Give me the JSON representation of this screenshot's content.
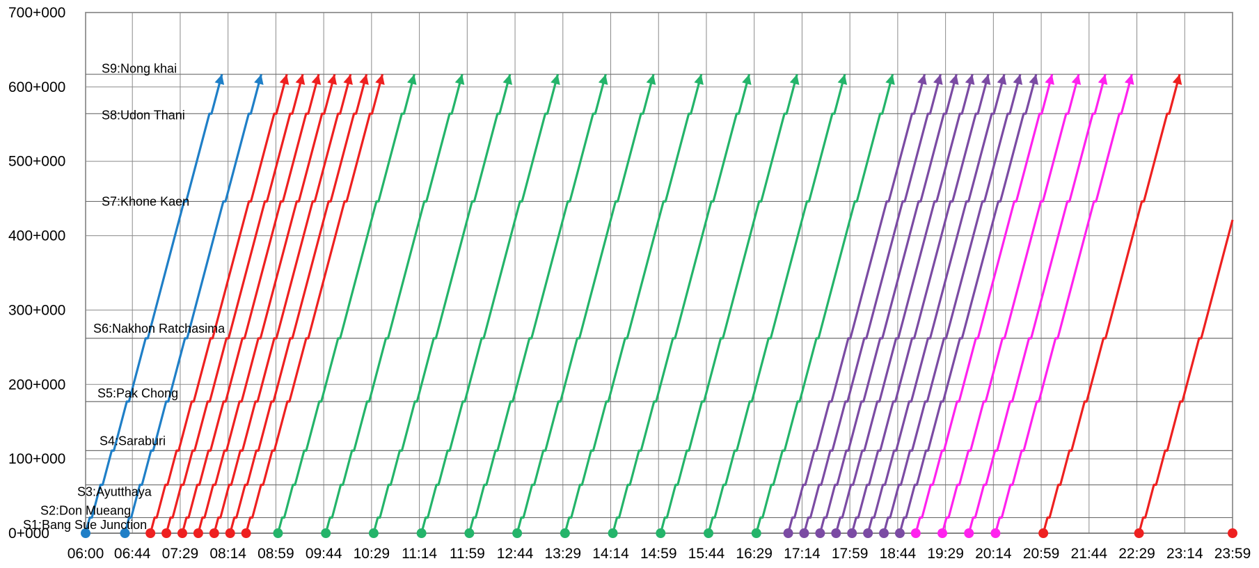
{
  "chart_data": {
    "type": "line",
    "title": "",
    "xlabel": "",
    "ylabel": "",
    "x_unit": "time of day",
    "y_unit": "chainage (km+m)",
    "xlim": [
      "06:00",
      "23:59"
    ],
    "ylim": [
      0,
      700
    ],
    "x_ticks": [
      "06:00",
      "06:44",
      "07:29",
      "08:14",
      "08:59",
      "09:44",
      "10:29",
      "11:14",
      "11:59",
      "12:44",
      "13:29",
      "14:14",
      "14:59",
      "15:44",
      "16:29",
      "17:14",
      "17:59",
      "18:44",
      "19:29",
      "20:14",
      "20:59",
      "21:44",
      "22:29",
      "23:14",
      "23:59"
    ],
    "y_ticks": [
      {
        "value": 0,
        "label": "0+000"
      },
      {
        "value": 100,
        "label": "100+000"
      },
      {
        "value": 200,
        "label": "200+000"
      },
      {
        "value": 300,
        "label": "300+000"
      },
      {
        "value": 400,
        "label": "400+000"
      },
      {
        "value": 500,
        "label": "500+000"
      },
      {
        "value": 600,
        "label": "600+000"
      },
      {
        "value": 700,
        "label": "700+000"
      }
    ],
    "grid": true,
    "stations": [
      {
        "name": "S1:Bang Sue Junction",
        "km": 0
      },
      {
        "name": "S2:Don Mueang",
        "km": 21
      },
      {
        "name": "S3:Ayutthaya",
        "km": 65
      },
      {
        "name": "S4:Saraburi",
        "km": 111
      },
      {
        "name": "S5:Pak Chong",
        "km": 177
      },
      {
        "name": "S6:Nakhon Ratchasima",
        "km": 262
      },
      {
        "name": "S7:Khone Kaen",
        "km": 446
      },
      {
        "name": "S8:Udon Thani",
        "km": 564
      },
      {
        "name": "S9:Nong khai",
        "km": 617
      }
    ],
    "series": [
      {
        "color": "#1f7fc7",
        "departures": [
          "06:00",
          "06:37"
        ]
      },
      {
        "color": "#ee2020",
        "departures": [
          "07:01",
          "07:16",
          "07:31",
          "07:46",
          "08:01",
          "08:16",
          "08:31"
        ]
      },
      {
        "color": "#24b46a",
        "departures": [
          "09:01",
          "09:46",
          "10:31",
          "11:16",
          "12:01",
          "12:46",
          "13:31",
          "14:16",
          "15:01",
          "15:46",
          "16:31"
        ]
      },
      {
        "color": "#7b4ba3",
        "departures": [
          "17:01",
          "17:16",
          "17:31",
          "17:46",
          "18:01",
          "18:16",
          "18:31",
          "18:46"
        ]
      },
      {
        "color": "#ff22ee",
        "departures": [
          "19:01",
          "19:26",
          "19:51",
          "20:16"
        ]
      },
      {
        "color": "#ee2020",
        "departures": [
          "21:01",
          "22:31",
          "23:59"
        ]
      }
    ]
  }
}
